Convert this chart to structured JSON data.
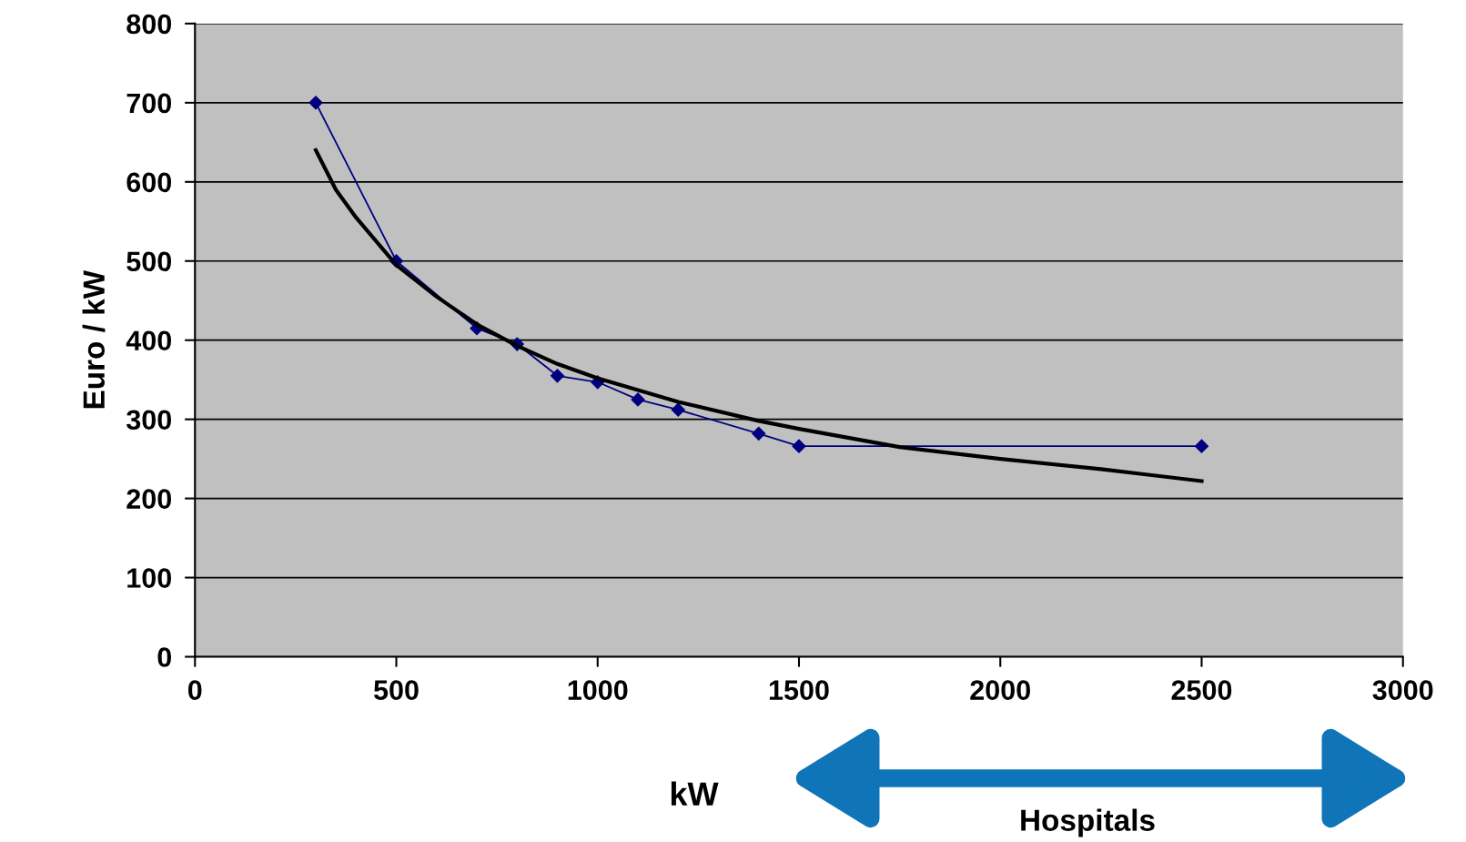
{
  "chart_data": {
    "type": "line",
    "ylabel": "Euro / kW",
    "xlabel": "kW",
    "series": [
      {
        "color": "#000080",
        "marker": "diamond",
        "x": [
          300,
          500,
          700,
          800,
          900,
          1000,
          1100,
          1200,
          1400,
          1500,
          2500
        ],
        "values": [
          700,
          500,
          415,
          395,
          355,
          347,
          325,
          312,
          282,
          266,
          266
        ]
      },
      {
        "color": "#000000",
        "marker": "none",
        "x": [
          300,
          350,
          400,
          500,
          600,
          700,
          800,
          900,
          1000,
          1200,
          1400,
          1500,
          1750,
          2000,
          2250,
          2500
        ],
        "values": [
          640,
          590,
          555,
          495,
          455,
          420,
          393,
          370,
          352,
          322,
          298,
          288,
          265,
          250,
          237,
          222
        ]
      }
    ],
    "xlim": [
      0,
      3000
    ],
    "xticks": [
      0,
      500,
      1000,
      1500,
      2000,
      2500,
      3000
    ],
    "ylim": [
      0,
      800
    ],
    "yticks": [
      0,
      100,
      200,
      300,
      400,
      500,
      600,
      700,
      800
    ],
    "grid": "y",
    "annotations": [
      "Hospitals"
    ]
  }
}
